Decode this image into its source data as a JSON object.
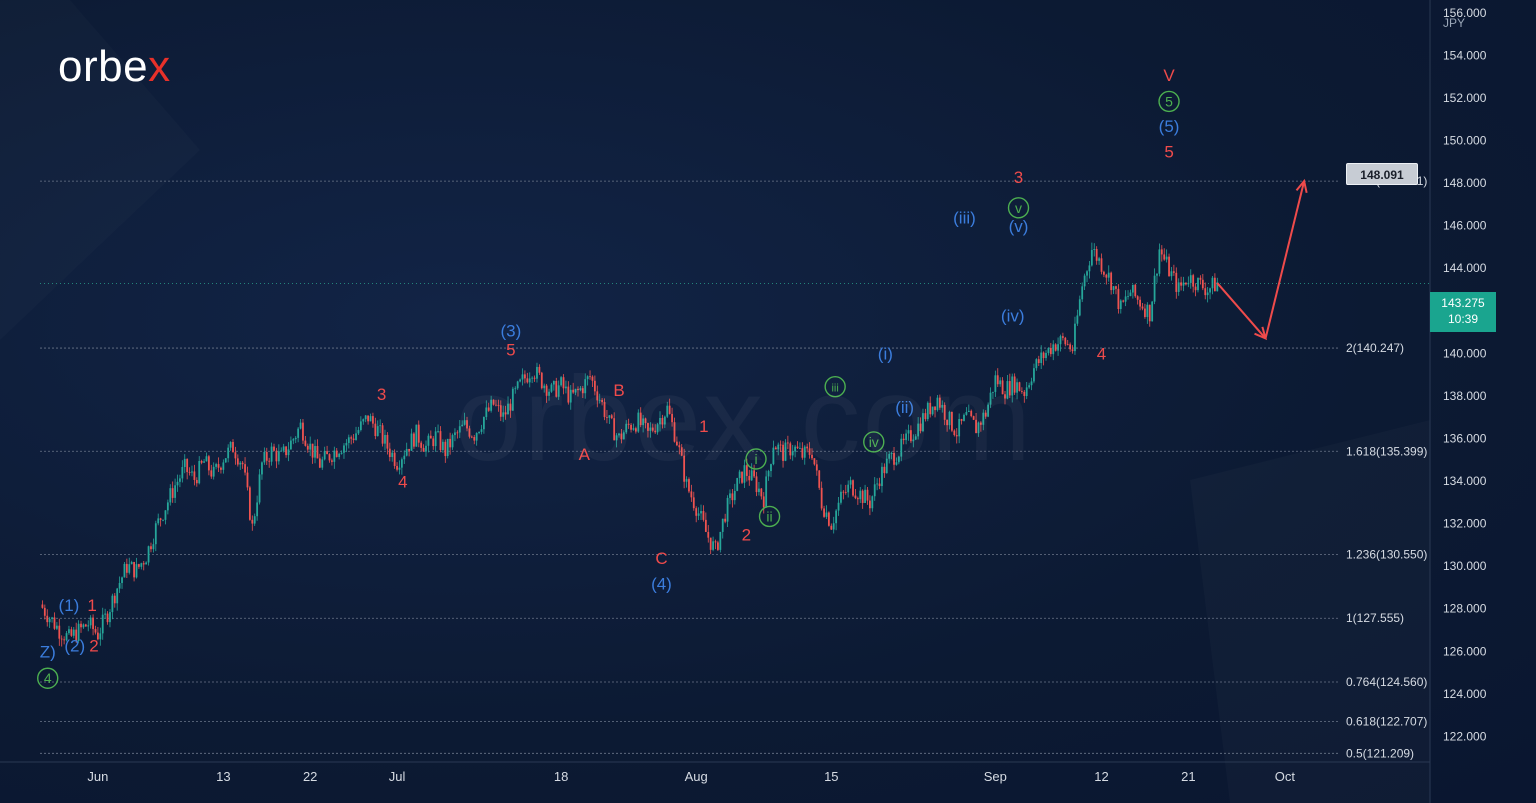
{
  "brand": {
    "logo_main": "orbe",
    "logo_x": "x",
    "watermark": "orbex.com"
  },
  "currency_label": "JPY",
  "current_price": {
    "price": "143.275",
    "countdown": "10:39"
  },
  "target_label": "148.091",
  "colors": {
    "background": "#0c1a33",
    "up_candle": "#26a69a",
    "down_candle": "#ef5350",
    "red_wave": "#ef4b4b",
    "blue_wave": "#3b7ddd",
    "green_wave": "#4caf50",
    "fib_line": "#6b7689",
    "axis_text": "#d6dbe3",
    "price_tag": "#1aa58f"
  },
  "chart_data": {
    "type": "candlestick",
    "ylim": [
      120.8,
      156.6
    ],
    "y_ticks": [
      "156.000",
      "154.000",
      "152.000",
      "150.000",
      "148.000",
      "146.000",
      "144.000",
      "142.000",
      "140.000",
      "138.000",
      "136.000",
      "134.000",
      "132.000",
      "130.000",
      "128.000",
      "126.000",
      "124.000",
      "122.000"
    ],
    "y_tick_values": [
      156,
      154,
      152,
      150,
      148,
      146,
      144,
      142,
      140,
      138,
      136,
      134,
      132,
      130,
      128,
      126,
      124,
      122
    ],
    "x_ticks": [
      {
        "label": "Jun",
        "day": 6
      },
      {
        "label": "13",
        "day": 19
      },
      {
        "label": "22",
        "day": 28
      },
      {
        "label": "Jul",
        "day": 37
      },
      {
        "label": "18",
        "day": 54
      },
      {
        "label": "Aug",
        "day": 68
      },
      {
        "label": "15",
        "day": 82
      },
      {
        "label": "Sep",
        "day": 99
      },
      {
        "label": "12",
        "day": 110
      },
      {
        "label": "21",
        "day": 119
      },
      {
        "label": "Oct",
        "day": 129
      }
    ],
    "fib_levels": [
      {
        "label": "2.618(148.091)",
        "value": 148.091
      },
      {
        "label": "2(140.247)",
        "value": 140.247
      },
      {
        "label": "1.618(135.399)",
        "value": 135.399
      },
      {
        "label": "1.236(130.550)",
        "value": 130.55
      },
      {
        "label": "1(127.555)",
        "value": 127.555
      },
      {
        "label": "0.764(124.560)",
        "value": 124.56
      },
      {
        "label": "0.618(122.707)",
        "value": 122.707
      },
      {
        "label": "0.5(121.209)",
        "value": 121.209
      }
    ],
    "current_price": 143.275,
    "price_path": [
      [
        0,
        128.2
      ],
      [
        2,
        127.0
      ],
      [
        3,
        126.6
      ],
      [
        5,
        127.3
      ],
      [
        6,
        126.8
      ],
      [
        7,
        127.8
      ],
      [
        8,
        129.0
      ],
      [
        9,
        130.0
      ],
      [
        10,
        129.8
      ],
      [
        11,
        130.5
      ],
      [
        12,
        131.8
      ],
      [
        13,
        132.8
      ],
      [
        14,
        133.8
      ],
      [
        15,
        134.6
      ],
      [
        16,
        134.1
      ],
      [
        17,
        134.9
      ],
      [
        18,
        134.3
      ],
      [
        19,
        135.1
      ],
      [
        20,
        135.6
      ],
      [
        21,
        134.8
      ],
      [
        22,
        131.8
      ],
      [
        23,
        134.8
      ],
      [
        24,
        135.4
      ],
      [
        25,
        135.1
      ],
      [
        26,
        135.8
      ],
      [
        27,
        136.6
      ],
      [
        28,
        135.6
      ],
      [
        29,
        134.8
      ],
      [
        30,
        135.2
      ],
      [
        31,
        135.6
      ],
      [
        32,
        135.9
      ],
      [
        33,
        136.4
      ],
      [
        34,
        137.0
      ],
      [
        35,
        136.4
      ],
      [
        36,
        135.6
      ],
      [
        37,
        134.9
      ],
      [
        38,
        135.6
      ],
      [
        39,
        136.2
      ],
      [
        40,
        135.6
      ],
      [
        41,
        136.1
      ],
      [
        42,
        135.4
      ],
      [
        43,
        136.1
      ],
      [
        44,
        136.6
      ],
      [
        45,
        136.2
      ],
      [
        46,
        137.0
      ],
      [
        47,
        137.6
      ],
      [
        48,
        137.0
      ],
      [
        49,
        137.9
      ],
      [
        50,
        138.7
      ],
      [
        51,
        139.3
      ],
      [
        52,
        138.7
      ],
      [
        53,
        138.2
      ],
      [
        54,
        138.5
      ],
      [
        55,
        137.9
      ],
      [
        56,
        138.3
      ],
      [
        57,
        138.9
      ],
      [
        58,
        137.9
      ],
      [
        59,
        136.7
      ],
      [
        60,
        136.0
      ],
      [
        61,
        136.6
      ],
      [
        62,
        136.8
      ],
      [
        63,
        136.2
      ],
      [
        64,
        136.8
      ],
      [
        65,
        137.4
      ],
      [
        66,
        135.9
      ],
      [
        67,
        133.8
      ],
      [
        68,
        132.8
      ],
      [
        69,
        131.6
      ],
      [
        70,
        130.7
      ],
      [
        71,
        132.5
      ],
      [
        72,
        133.6
      ],
      [
        73,
        134.5
      ],
      [
        74,
        134.0
      ],
      [
        75,
        133.2
      ],
      [
        76,
        135.8
      ],
      [
        77,
        135.3
      ],
      [
        78,
        135.6
      ],
      [
        79,
        135.2
      ],
      [
        80,
        135.4
      ],
      [
        81,
        133.0
      ],
      [
        82,
        132.0
      ],
      [
        83,
        133.2
      ],
      [
        84,
        133.8
      ],
      [
        85,
        133.4
      ],
      [
        86,
        133.0
      ],
      [
        87,
        134.2
      ],
      [
        88,
        135.0
      ],
      [
        89,
        135.4
      ],
      [
        90,
        136.0
      ],
      [
        91,
        136.6
      ],
      [
        92,
        137.3
      ],
      [
        93,
        137.9
      ],
      [
        94,
        137.0
      ],
      [
        95,
        136.3
      ],
      [
        96,
        137.0
      ],
      [
        97,
        136.5
      ],
      [
        98,
        137.2
      ],
      [
        99,
        138.8
      ],
      [
        100,
        138.3
      ],
      [
        101,
        138.6
      ],
      [
        102,
        138.2
      ],
      [
        103,
        139.3
      ],
      [
        104,
        139.9
      ],
      [
        105,
        140.4
      ],
      [
        106,
        140.6
      ],
      [
        107,
        140.2
      ],
      [
        108,
        143.2
      ],
      [
        109,
        144.9
      ],
      [
        110,
        144.2
      ],
      [
        111,
        143.4
      ],
      [
        112,
        142.1
      ],
      [
        113,
        142.9
      ],
      [
        114,
        142.4
      ],
      [
        115,
        141.9
      ],
      [
        116,
        144.9
      ],
      [
        117,
        143.9
      ],
      [
        118,
        143.0
      ],
      [
        119,
        143.6
      ],
      [
        120,
        143.3
      ],
      [
        121,
        143.0
      ],
      [
        122,
        143.3
      ]
    ],
    "projection": [
      [
        122,
        143.3
      ],
      [
        127,
        140.7
      ],
      [
        131,
        148.091
      ]
    ],
    "wave_labels": [
      {
        "text": "1",
        "color": "red",
        "day": 5.4,
        "price": 127.9
      },
      {
        "text": "(1)",
        "color": "blue",
        "day": 3.0,
        "price": 127.9
      },
      {
        "text": "(2)",
        "color": "blue",
        "day": 3.6,
        "price": 126.0
      },
      {
        "text": "2",
        "color": "red",
        "day": 5.6,
        "price": 126.0
      },
      {
        "text": "Z)",
        "color": "blue",
        "day": 0.8,
        "price": 125.7
      },
      {
        "text": "4",
        "color": "green",
        "day": 0.8,
        "price": 124.5,
        "circle": true
      },
      {
        "text": "3",
        "color": "red",
        "day": 35.4,
        "price": 137.8
      },
      {
        "text": "4",
        "color": "red",
        "day": 37.6,
        "price": 133.7
      },
      {
        "text": "(3)",
        "color": "blue",
        "day": 48.8,
        "price": 140.8
      },
      {
        "text": "5",
        "color": "red",
        "day": 48.8,
        "price": 139.9
      },
      {
        "text": "B",
        "color": "red",
        "day": 60.0,
        "price": 138.0
      },
      {
        "text": "A",
        "color": "red",
        "day": 56.4,
        "price": 135.0
      },
      {
        "text": "1",
        "color": "red",
        "day": 68.8,
        "price": 136.3
      },
      {
        "text": "C",
        "color": "red",
        "day": 64.4,
        "price": 130.1
      },
      {
        "text": "(4)",
        "color": "blue",
        "day": 64.4,
        "price": 128.9
      },
      {
        "text": "i",
        "color": "green",
        "day": 74.2,
        "price": 134.8,
        "circle": true
      },
      {
        "text": "2",
        "color": "red",
        "day": 73.2,
        "price": 131.2
      },
      {
        "text": "ii",
        "color": "green",
        "day": 75.6,
        "price": 132.1,
        "circle": true
      },
      {
        "text": "iii",
        "color": "green",
        "day": 82.4,
        "price": 138.2,
        "circle": true
      },
      {
        "text": "iv",
        "color": "green",
        "day": 86.4,
        "price": 135.6,
        "circle": true
      },
      {
        "text": "(i)",
        "color": "blue",
        "day": 87.6,
        "price": 139.7
      },
      {
        "text": "(ii)",
        "color": "blue",
        "day": 89.6,
        "price": 137.2
      },
      {
        "text": "(iii)",
        "color": "blue",
        "day": 95.8,
        "price": 146.1
      },
      {
        "text": "(iv)",
        "color": "blue",
        "day": 100.8,
        "price": 141.5
      },
      {
        "text": "(v)",
        "color": "blue",
        "day": 101.4,
        "price": 145.7
      },
      {
        "text": "v",
        "color": "green",
        "day": 101.4,
        "price": 146.6,
        "circle": true
      },
      {
        "text": "3",
        "color": "red",
        "day": 101.4,
        "price": 148.0
      },
      {
        "text": "4",
        "color": "red",
        "day": 110.0,
        "price": 139.7
      },
      {
        "text": "5",
        "color": "red",
        "day": 117.0,
        "price": 149.2
      },
      {
        "text": "(5)",
        "color": "blue",
        "day": 117.0,
        "price": 150.4
      },
      {
        "text": "5",
        "color": "green",
        "day": 117.0,
        "price": 151.6,
        "circle": true
      },
      {
        "text": "V",
        "color": "red",
        "day": 117.0,
        "price": 152.8
      }
    ]
  }
}
